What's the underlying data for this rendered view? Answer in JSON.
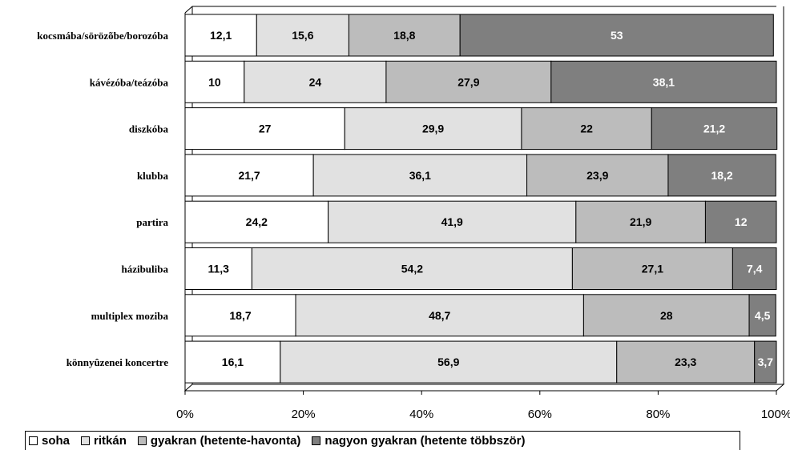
{
  "chart_data": {
    "type": "bar",
    "orientation": "horizontal",
    "stacked": "percent",
    "categories": [
      "kocsmába/sörözõbe/borozóba",
      "kávézóba/teázóba",
      "diszkóba",
      "klubba",
      "partira",
      "házibuliba",
      "multiplex moziba",
      "könnyûzenei koncertre"
    ],
    "series": [
      {
        "name": "soha",
        "color": "#ffffff",
        "label_color": "#000000",
        "values": [
          12.1,
          10,
          27,
          21.7,
          24.2,
          11.3,
          18.7,
          16.1
        ]
      },
      {
        "name": "ritkán",
        "color": "#e1e1e1",
        "label_color": "#000000",
        "values": [
          15.6,
          24,
          29.9,
          36.1,
          41.9,
          54.2,
          48.7,
          56.9
        ]
      },
      {
        "name": "gyakran (hetente-havonta)",
        "color": "#bcbcbc",
        "label_color": "#000000",
        "values": [
          18.8,
          27.9,
          22,
          23.9,
          21.9,
          27.1,
          28,
          23.3
        ]
      },
      {
        "name": "nagyon gyakran (hetente többször)",
        "color": "#7f7f7f",
        "label_color": "#ffffff",
        "values": [
          53,
          38.1,
          21.2,
          18.2,
          12,
          7.4,
          4.5,
          3.7
        ]
      }
    ],
    "data_labels": [
      [
        "12,1",
        "15,6",
        "18,8",
        "53"
      ],
      [
        "10",
        "24",
        "27,9",
        "38,1"
      ],
      [
        "27",
        "29,9",
        "22",
        "21,2"
      ],
      [
        "21,7",
        "36,1",
        "23,9",
        "18,2"
      ],
      [
        "24,2",
        "41,9",
        "21,9",
        "12"
      ],
      [
        "11,3",
        "54,2",
        "27,1",
        "7,4"
      ],
      [
        "18,7",
        "48,7",
        "28",
        "4,5"
      ],
      [
        "16,1",
        "56,9",
        "23,3",
        "3,7"
      ]
    ],
    "xlim": [
      0,
      100
    ],
    "x_ticks": [
      "0%",
      "20%",
      "40%",
      "60%",
      "80%",
      "100%"
    ],
    "legend_position": "bottom",
    "grid": false
  }
}
